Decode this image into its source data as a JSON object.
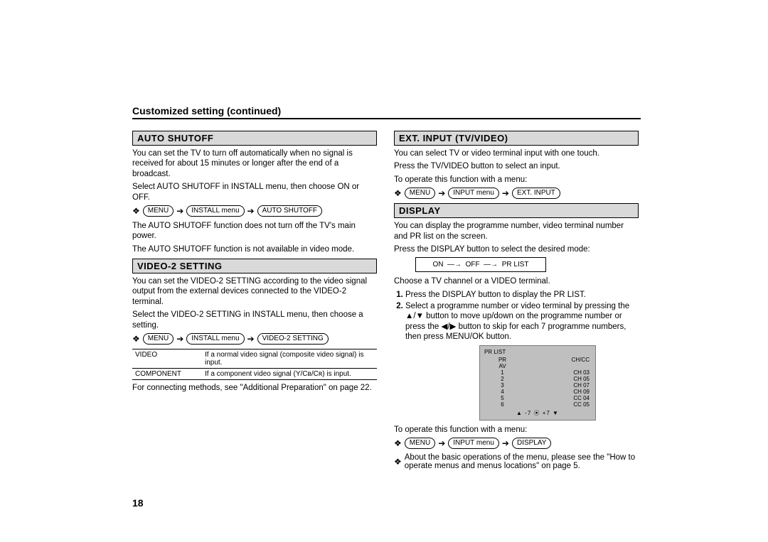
{
  "page": {
    "title": "Customized setting (continued)",
    "number": "18"
  },
  "nav_glyphs": {
    "ref": "❖",
    "arrow": "➔"
  },
  "left": {
    "sec1": {
      "head": "AUTO SHUTOFF",
      "p1": "You can set the TV to turn off automatically when no signal is received for about 15 minutes or longer after the end of a broadcast.",
      "p2": "Select AUTO SHUTOFF in INSTALL menu, then choose ON or OFF.",
      "nav": [
        "MENU",
        "INSTALL menu",
        "AUTO SHUTOFF"
      ],
      "p3": "The AUTO SHUTOFF function does not turn off the TV's main power.",
      "p4": "The AUTO SHUTOFF function is not available in video mode."
    },
    "sec2": {
      "head": "VIDEO-2 SETTING",
      "p1": "You can set the VIDEO-2 SETTING according to the video signal output from the external devices connected to the VIDEO-2 terminal.",
      "p2": "Select the VIDEO-2 SETTING in INSTALL menu, then choose a setting.",
      "nav": [
        "MENU",
        "INSTALL menu",
        "VIDEO-2 SETTING"
      ],
      "table": [
        {
          "k": "VIDEO",
          "v": "If a normal video signal (composite video signal) is input."
        },
        {
          "k": "COMPONENT",
          "v": "If a component video signal (Y/Cʙ/Cʀ) is input."
        }
      ],
      "p3": "For connecting methods, see \"Additional Preparation\" on page 22."
    }
  },
  "right": {
    "sec1": {
      "head": "EXT. INPUT (TV/VIDEO)",
      "p1": "You can select TV or video terminal input with one touch.",
      "p2": "Press the TV/VIDEO button to select an input.",
      "p3": "To operate this function with a menu:",
      "nav": [
        "MENU",
        "INPUT menu",
        "EXT. INPUT"
      ]
    },
    "sec2": {
      "head": "DISPLAY",
      "p1": "You can display the programme number, video terminal number and PR list on the screen.",
      "p2": "Press the DISPLAY button to select the desired mode:",
      "diagram": {
        "a": "ON",
        "b": "OFF",
        "c": "PR LIST"
      },
      "p3": "Choose a TV channel or a VIDEO terminal.",
      "steps": [
        "Press the DISPLAY button to display the PR LIST.",
        "Select a programme number or video terminal by pressing the ▲/▼ button to move up/down on the programme number or press the ◀/▶ button to skip for each 7 programme numbers, then press MENU/OK button."
      ],
      "prlist": {
        "title": "PR LIST",
        "cols": [
          "PR",
          "CH/CC"
        ],
        "rows": [
          [
            "AV",
            ""
          ],
          [
            "1",
            "CH 03"
          ],
          [
            "2",
            "CH 05"
          ],
          [
            "3",
            "CH 07"
          ],
          [
            "4",
            "CH 09"
          ],
          [
            "5",
            "CC 04"
          ],
          [
            "6",
            "CC 05"
          ]
        ],
        "footer": "▲ -7 ⦿ +7 ▼"
      },
      "p4": "To operate this function with a menu:",
      "nav": [
        "MENU",
        "INPUT menu",
        "DISPLAY"
      ],
      "note": "About the basic operations of the menu, please see the \"How to operate menus and menus locations\" on page 5."
    }
  }
}
